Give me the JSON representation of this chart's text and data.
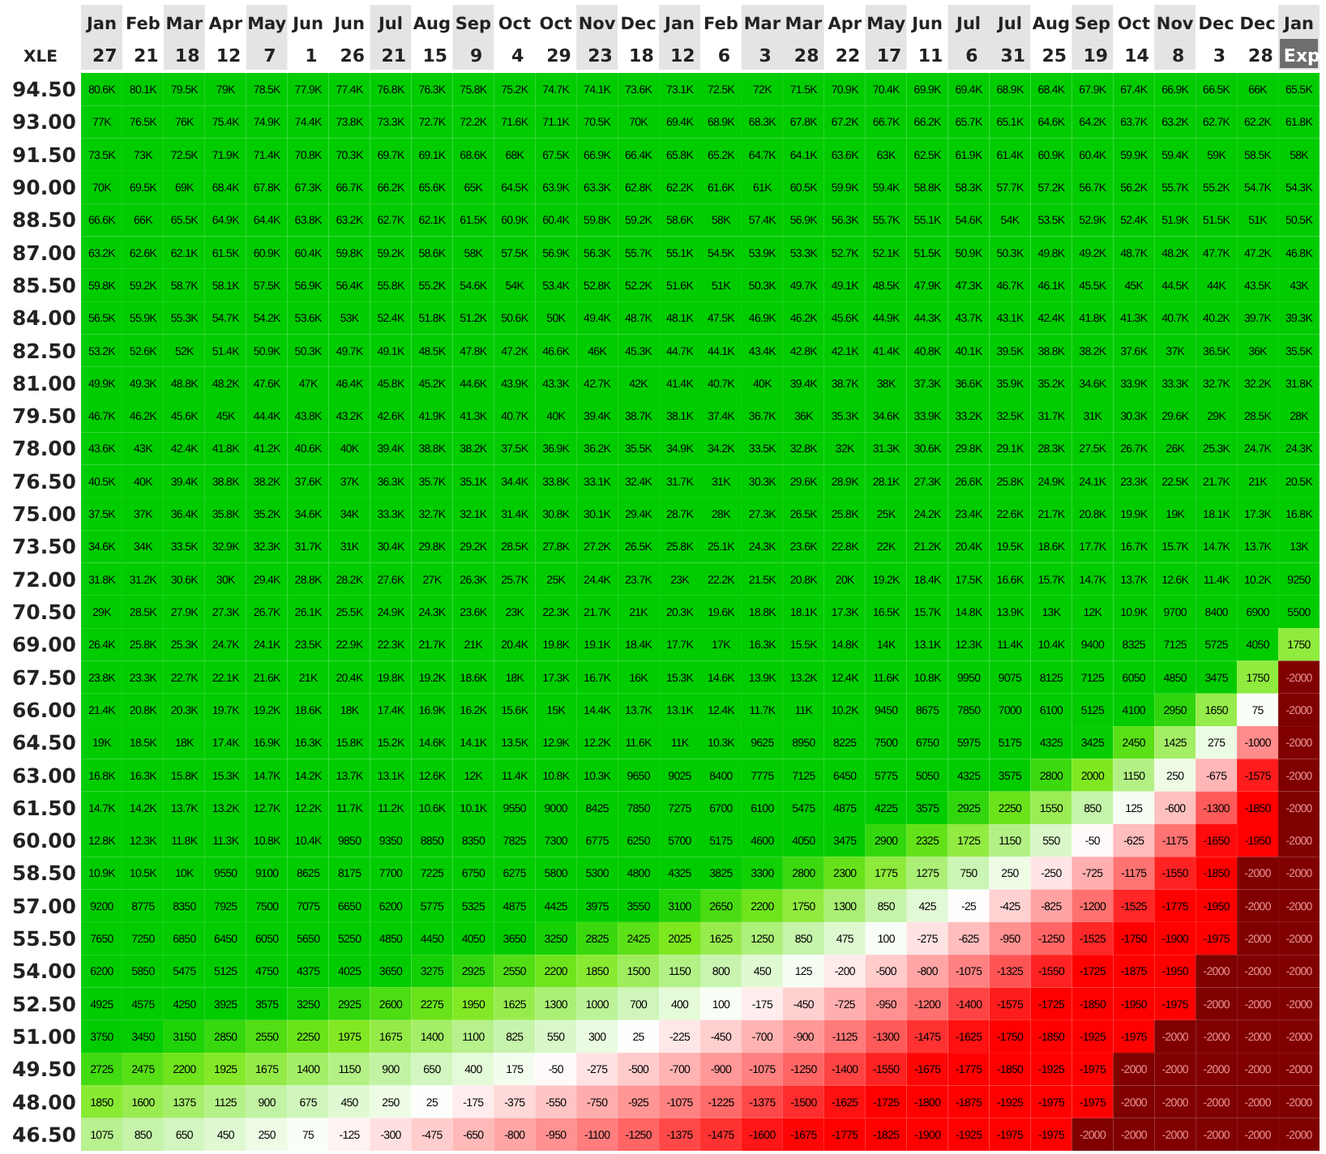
{
  "chart_data": {
    "type": "heatmap",
    "ylabel": "XLE",
    "categories": [
      "Jan 27",
      "Feb 21",
      "Mar 18",
      "Apr 12",
      "May 7",
      "Jun 1",
      "Jun 26",
      "Jul 21",
      "Aug 15",
      "Sep 9",
      "Oct 4",
      "Oct 29",
      "Nov 23",
      "Dec 18",
      "Jan 12",
      "Feb 6",
      "Mar 3",
      "Mar 28",
      "Apr 22",
      "May 17",
      "Jun 11",
      "Jul 6",
      "Jul 31",
      "Aug 25",
      "Sep 19",
      "Oct 14",
      "Nov 8",
      "Dec 3",
      "Dec 28",
      "Jan Exp"
    ],
    "y_categories": [
      "94.50",
      "93.00",
      "91.50",
      "90.00",
      "88.50",
      "87.00",
      "85.50",
      "84.00",
      "82.50",
      "81.00",
      "79.50",
      "78.00",
      "76.50",
      "75.00",
      "73.50",
      "72.00",
      "70.50",
      "69.00",
      "67.50",
      "66.00",
      "64.50",
      "63.00",
      "61.50",
      "60.00",
      "58.50",
      "57.00",
      "55.50",
      "54.00",
      "52.50",
      "51.00",
      "49.50",
      "48.00",
      "46.50"
    ],
    "cells": [
      [
        80600,
        80100,
        79500,
        79000,
        78500,
        77900,
        77400,
        76800,
        76300,
        75800,
        75200,
        74700,
        74100,
        73600,
        73100,
        72500,
        72000,
        71500,
        70900,
        70400,
        69900,
        69400,
        68900,
        68400,
        67900,
        67400,
        66900,
        66500,
        66000,
        65500
      ],
      [
        77000,
        76500,
        76000,
        75400,
        74900,
        74400,
        73800,
        73300,
        72700,
        72200,
        71600,
        71100,
        70500,
        70000,
        69400,
        68900,
        68300,
        67800,
        67200,
        66700,
        66200,
        65700,
        65100,
        64600,
        64200,
        63700,
        63200,
        62700,
        62200,
        61800
      ],
      [
        73500,
        73000,
        72500,
        71900,
        71400,
        70800,
        70300,
        69700,
        69100,
        68600,
        68000,
        67500,
        66900,
        66400,
        65800,
        65200,
        64700,
        64100,
        63600,
        63000,
        62500,
        61900,
        61400,
        60900,
        60400,
        59900,
        59400,
        59000,
        58500,
        58000
      ],
      [
        70000,
        69500,
        69000,
        68400,
        67800,
        67300,
        66700,
        66200,
        65600,
        65000,
        64500,
        63900,
        63300,
        62800,
        62200,
        61600,
        61000,
        60500,
        59900,
        59400,
        58800,
        58300,
        57700,
        57200,
        56700,
        56200,
        55700,
        55200,
        54700,
        54300
      ],
      [
        66600,
        66000,
        65500,
        64900,
        64400,
        63800,
        63200,
        62700,
        62100,
        61500,
        60900,
        60400,
        59800,
        59200,
        58600,
        58000,
        57400,
        56900,
        56300,
        55700,
        55100,
        54600,
        54000,
        53500,
        52900,
        52400,
        51900,
        51500,
        51000,
        50500
      ],
      [
        63200,
        62600,
        62100,
        61500,
        60900,
        60400,
        59800,
        59200,
        58600,
        58000,
        57500,
        56900,
        56300,
        55700,
        55100,
        54500,
        53900,
        53300,
        52700,
        52100,
        51500,
        50900,
        50300,
        49800,
        49200,
        48700,
        48200,
        47700,
        47200,
        46800
      ],
      [
        59800,
        59200,
        58700,
        58100,
        57500,
        56900,
        56400,
        55800,
        55200,
        54600,
        54000,
        53400,
        52800,
        52200,
        51600,
        51000,
        50300,
        49700,
        49100,
        48500,
        47900,
        47300,
        46700,
        46100,
        45500,
        45000,
        44500,
        44000,
        43500,
        43000
      ],
      [
        56500,
        55900,
        55300,
        54700,
        54200,
        53600,
        53000,
        52400,
        51800,
        51200,
        50600,
        50000,
        49400,
        48700,
        48100,
        47500,
        46900,
        46200,
        45600,
        44900,
        44300,
        43700,
        43100,
        42400,
        41800,
        41300,
        40700,
        40200,
        39700,
        39300
      ],
      [
        53200,
        52600,
        52000,
        51400,
        50900,
        50300,
        49700,
        49100,
        48500,
        47800,
        47200,
        46600,
        46000,
        45300,
        44700,
        44100,
        43400,
        42800,
        42100,
        41400,
        40800,
        40100,
        39500,
        38800,
        38200,
        37600,
        37000,
        36500,
        36000,
        35500
      ],
      [
        49900,
        49300,
        48800,
        48200,
        47600,
        47000,
        46400,
        45800,
        45200,
        44600,
        43900,
        43300,
        42700,
        42000,
        41400,
        40700,
        40000,
        39400,
        38700,
        38000,
        37300,
        36600,
        35900,
        35200,
        34600,
        33900,
        33300,
        32700,
        32200,
        31800
      ],
      [
        46700,
        46200,
        45600,
        45000,
        44400,
        43800,
        43200,
        42600,
        41900,
        41300,
        40700,
        40000,
        39400,
        38700,
        38100,
        37400,
        36700,
        36000,
        35300,
        34600,
        33900,
        33200,
        32500,
        31700,
        31000,
        30300,
        29600,
        29000,
        28500,
        28000
      ],
      [
        43600,
        43000,
        42400,
        41800,
        41200,
        40600,
        40000,
        39400,
        38800,
        38200,
        37500,
        36900,
        36200,
        35500,
        34900,
        34200,
        33500,
        32800,
        32000,
        31300,
        30600,
        29800,
        29100,
        28300,
        27500,
        26700,
        26000,
        25300,
        24700,
        24300
      ],
      [
        40500,
        40000,
        39400,
        38800,
        38200,
        37600,
        37000,
        36300,
        35700,
        35100,
        34400,
        33800,
        33100,
        32400,
        31700,
        31000,
        30300,
        29600,
        28900,
        28100,
        27300,
        26600,
        25800,
        24900,
        24100,
        23300,
        22500,
        21700,
        21000,
        20500
      ],
      [
        37500,
        37000,
        36400,
        35800,
        35200,
        34600,
        34000,
        33300,
        32700,
        32100,
        31400,
        30800,
        30100,
        29400,
        28700,
        28000,
        27300,
        26500,
        25800,
        25000,
        24200,
        23400,
        22600,
        21700,
        20800,
        19900,
        19000,
        18100,
        17300,
        16800
      ],
      [
        34600,
        34000,
        33500,
        32900,
        32300,
        31700,
        31000,
        30400,
        29800,
        29200,
        28500,
        27800,
        27200,
        26500,
        25800,
        25100,
        24300,
        23600,
        22800,
        22000,
        21200,
        20400,
        19500,
        18600,
        17700,
        16700,
        15700,
        14700,
        13700,
        13000
      ],
      [
        31800,
        31200,
        30600,
        30000,
        29400,
        28800,
        28200,
        27600,
        27000,
        26300,
        25700,
        25000,
        24400,
        23700,
        23000,
        22200,
        21500,
        20800,
        20000,
        19200,
        18400,
        17500,
        16600,
        15700,
        14700,
        13700,
        12600,
        11400,
        10200,
        9250
      ],
      [
        29000,
        28500,
        27900,
        27300,
        26700,
        26100,
        25500,
        24900,
        24300,
        23600,
        23000,
        22300,
        21700,
        21000,
        20300,
        19600,
        18800,
        18100,
        17300,
        16500,
        15700,
        14800,
        13900,
        13000,
        12000,
        10900,
        9700,
        8400,
        6900,
        5500
      ],
      [
        26400,
        25800,
        25300,
        24700,
        24100,
        23500,
        22900,
        22300,
        21700,
        21000,
        20400,
        19800,
        19100,
        18400,
        17700,
        17000,
        16300,
        15500,
        14800,
        14000,
        13100,
        12300,
        11400,
        10400,
        9400,
        8325,
        7125,
        5725,
        4050,
        1750
      ],
      [
        23800,
        23300,
        22700,
        22100,
        21600,
        21000,
        20400,
        19800,
        19200,
        18600,
        18000,
        17300,
        16700,
        16000,
        15300,
        14600,
        13900,
        13200,
        12400,
        11600,
        10800,
        9950,
        9075,
        8125,
        7125,
        6050,
        4850,
        3475,
        1750,
        -2000
      ],
      [
        21400,
        20800,
        20300,
        19700,
        19200,
        18600,
        18000,
        17400,
        16900,
        16200,
        15600,
        15000,
        14400,
        13700,
        13100,
        12400,
        11700,
        11000,
        10200,
        9450,
        8675,
        7850,
        7000,
        6100,
        5125,
        4100,
        2950,
        1650,
        75,
        -2000
      ],
      [
        19000,
        18500,
        18000,
        17400,
        16900,
        16300,
        15800,
        15200,
        14600,
        14100,
        13500,
        12900,
        12200,
        11600,
        11000,
        10300,
        9625,
        8950,
        8225,
        7500,
        6750,
        5975,
        5175,
        4325,
        3425,
        2450,
        1425,
        275,
        -1000,
        -2000
      ],
      [
        16800,
        16300,
        15800,
        15300,
        14700,
        14200,
        13700,
        13100,
        12600,
        12000,
        11400,
        10800,
        10300,
        9650,
        9025,
        8400,
        7775,
        7125,
        6450,
        5775,
        5050,
        4325,
        3575,
        2800,
        2000,
        1150,
        250,
        -675,
        -1575,
        -2000
      ],
      [
        14700,
        14200,
        13700,
        13200,
        12700,
        12200,
        11700,
        11200,
        10600,
        10100,
        9550,
        9000,
        8425,
        7850,
        7275,
        6700,
        6100,
        5475,
        4875,
        4225,
        3575,
        2925,
        2250,
        1550,
        850,
        125,
        -600,
        -1300,
        -1850,
        -2000
      ],
      [
        12800,
        12300,
        11800,
        11300,
        10800,
        10400,
        9850,
        9350,
        8850,
        8350,
        7825,
        7300,
        6775,
        6250,
        5700,
        5175,
        4600,
        4050,
        3475,
        2900,
        2325,
        1725,
        1150,
        550,
        -50,
        -625,
        -1175,
        -1650,
        -1950,
        -2000
      ],
      [
        10900,
        10500,
        10000,
        9550,
        9100,
        8625,
        8175,
        7700,
        7225,
        6750,
        6275,
        5800,
        5300,
        4800,
        4325,
        3825,
        3300,
        2800,
        2300,
        1775,
        1275,
        750,
        250,
        -250,
        -725,
        -1175,
        -1550,
        -1850,
        -2000,
        -2000
      ],
      [
        9200,
        8775,
        8350,
        7925,
        7500,
        7075,
        6650,
        6200,
        5775,
        5325,
        4875,
        4425,
        3975,
        3550,
        3100,
        2650,
        2200,
        1750,
        1300,
        850,
        425,
        -25,
        -425,
        -825,
        -1200,
        -1525,
        -1775,
        -1950,
        -2000,
        -2000
      ],
      [
        7650,
        7250,
        6850,
        6450,
        6050,
        5650,
        5250,
        4850,
        4450,
        4050,
        3650,
        3250,
        2825,
        2425,
        2025,
        1625,
        1250,
        850,
        475,
        100,
        -275,
        -625,
        -950,
        -1250,
        -1525,
        -1750,
        -1900,
        -1975,
        -2000,
        -2000
      ],
      [
        6200,
        5850,
        5475,
        5125,
        4750,
        4375,
        4025,
        3650,
        3275,
        2925,
        2550,
        2200,
        1850,
        1500,
        1150,
        800,
        450,
        125,
        -200,
        -500,
        -800,
        -1075,
        -1325,
        -1550,
        -1725,
        -1875,
        -1950,
        -2000,
        -2000,
        -2000
      ],
      [
        4925,
        4575,
        4250,
        3925,
        3575,
        3250,
        2925,
        2600,
        2275,
        1950,
        1625,
        1300,
        1000,
        700,
        400,
        100,
        -175,
        -450,
        -725,
        -950,
        -1200,
        -1400,
        -1575,
        -1725,
        -1850,
        -1950,
        -1975,
        -2000,
        -2000,
        -2000
      ],
      [
        3750,
        3450,
        3150,
        2850,
        2550,
        2250,
        1975,
        1675,
        1400,
        1100,
        825,
        550,
        300,
        25,
        -225,
        -450,
        -700,
        -900,
        -1125,
        -1300,
        -1475,
        -1625,
        -1750,
        -1850,
        -1925,
        -1975,
        -2000,
        -2000,
        -2000,
        -2000
      ],
      [
        2725,
        2475,
        2200,
        1925,
        1675,
        1400,
        1150,
        900,
        650,
        400,
        175,
        -50,
        -275,
        -500,
        -700,
        -900,
        -1075,
        -1250,
        -1400,
        -1550,
        -1675,
        -1775,
        -1850,
        -1925,
        -1975,
        -2000,
        -2000,
        -2000,
        -2000,
        -2000
      ],
      [
        1850,
        1600,
        1375,
        1125,
        900,
        675,
        450,
        250,
        25,
        -175,
        -375,
        -550,
        -750,
        -925,
        -1075,
        -1225,
        -1375,
        -1500,
        -1625,
        -1725,
        -1800,
        -1875,
        -1925,
        -1975,
        -1975,
        -2000,
        -2000,
        -2000,
        -2000,
        -2000
      ],
      [
        1075,
        850,
        650,
        450,
        250,
        75,
        -125,
        -300,
        -475,
        -650,
        -800,
        -950,
        -1100,
        -1250,
        -1375,
        -1475,
        -1600,
        -1675,
        -1775,
        -1825,
        -1900,
        -1925,
        -1975,
        -1975,
        -2000,
        -2000,
        -2000,
        -2000,
        -2000,
        -2000
      ]
    ],
    "cell_labels": [
      [
        "80.6K",
        "80.1K",
        "79.5K",
        "79K",
        "78.5K",
        "77.9K",
        "77.4K",
        "76.8K",
        "76.3K",
        "75.8K",
        "75.2K",
        "74.7K",
        "74.1K",
        "73.6K",
        "73.1K",
        "72.5K",
        "72K",
        "71.5K",
        "70.9K",
        "70.4K",
        "69.9K",
        "69.4K",
        "68.9K",
        "68.4K",
        "67.9K",
        "67.4K",
        "66.9K",
        "66.5K",
        "66K",
        "65.5K"
      ],
      [
        "77K",
        "76.5K",
        "76K",
        "75.4K",
        "74.9K",
        "74.4K",
        "73.8K",
        "73.3K",
        "72.7K",
        "72.2K",
        "71.6K",
        "71.1K",
        "70.5K",
        "70K",
        "69.4K",
        "68.9K",
        "68.3K",
        "67.8K",
        "67.2K",
        "66.7K",
        "66.2K",
        "65.7K",
        "65.1K",
        "64.6K",
        "64.2K",
        "63.7K",
        "63.2K",
        "62.7K",
        "62.2K",
        "61.8K"
      ],
      [
        "73.5K",
        "73K",
        "72.5K",
        "71.9K",
        "71.4K",
        "70.8K",
        "70.3K",
        "69.7K",
        "69.1K",
        "68.6K",
        "68K",
        "67.5K",
        "66.9K",
        "66.4K",
        "65.8K",
        "65.2K",
        "64.7K",
        "64.1K",
        "63.6K",
        "63K",
        "62.5K",
        "61.9K",
        "61.4K",
        "60.9K",
        "60.4K",
        "59.9K",
        "59.4K",
        "59K",
        "58.5K",
        "58K"
      ],
      [
        "70K",
        "69.5K",
        "69K",
        "68.4K",
        "67.8K",
        "67.3K",
        "66.7K",
        "66.2K",
        "65.6K",
        "65K",
        "64.5K",
        "63.9K",
        "63.3K",
        "62.8K",
        "62.2K",
        "61.6K",
        "61K",
        "60.5K",
        "59.9K",
        "59.4K",
        "58.8K",
        "58.3K",
        "57.7K",
        "57.2K",
        "56.7K",
        "56.2K",
        "55.7K",
        "55.2K",
        "54.7K",
        "54.3K"
      ],
      [
        "66.6K",
        "66K",
        "65.5K",
        "64.9K",
        "64.4K",
        "63.8K",
        "63.2K",
        "62.7K",
        "62.1K",
        "61.5K",
        "60.9K",
        "60.4K",
        "59.8K",
        "59.2K",
        "58.6K",
        "58K",
        "57.4K",
        "56.9K",
        "56.3K",
        "55.7K",
        "55.1K",
        "54.6K",
        "54K",
        "53.5K",
        "52.9K",
        "52.4K",
        "51.9K",
        "51.5K",
        "51K",
        "50.5K"
      ],
      [
        "63.2K",
        "62.6K",
        "62.1K",
        "61.5K",
        "60.9K",
        "60.4K",
        "59.8K",
        "59.2K",
        "58.6K",
        "58K",
        "57.5K",
        "56.9K",
        "56.3K",
        "55.7K",
        "55.1K",
        "54.5K",
        "53.9K",
        "53.3K",
        "52.7K",
        "52.1K",
        "51.5K",
        "50.9K",
        "50.3K",
        "49.8K",
        "49.2K",
        "48.7K",
        "48.2K",
        "47.7K",
        "47.2K",
        "46.8K"
      ],
      [
        "59.8K",
        "59.2K",
        "58.7K",
        "58.1K",
        "57.5K",
        "56.9K",
        "56.4K",
        "55.8K",
        "55.2K",
        "54.6K",
        "54K",
        "53.4K",
        "52.8K",
        "52.2K",
        "51.6K",
        "51K",
        "50.3K",
        "49.7K",
        "49.1K",
        "48.5K",
        "47.9K",
        "47.3K",
        "46.7K",
        "46.1K",
        "45.5K",
        "45K",
        "44.5K",
        "44K",
        "43.5K",
        "43K"
      ],
      [
        "56.5K",
        "55.9K",
        "55.3K",
        "54.7K",
        "54.2K",
        "53.6K",
        "53K",
        "52.4K",
        "51.8K",
        "51.2K",
        "50.6K",
        "50K",
        "49.4K",
        "48.7K",
        "48.1K",
        "47.5K",
        "46.9K",
        "46.2K",
        "45.6K",
        "44.9K",
        "44.3K",
        "43.7K",
        "43.1K",
        "42.4K",
        "41.8K",
        "41.3K",
        "40.7K",
        "40.2K",
        "39.7K",
        "39.3K"
      ],
      [
        "53.2K",
        "52.6K",
        "52K",
        "51.4K",
        "50.9K",
        "50.3K",
        "49.7K",
        "49.1K",
        "48.5K",
        "47.8K",
        "47.2K",
        "46.6K",
        "46K",
        "45.3K",
        "44.7K",
        "44.1K",
        "43.4K",
        "42.8K",
        "42.1K",
        "41.4K",
        "40.8K",
        "40.1K",
        "39.5K",
        "38.8K",
        "38.2K",
        "37.6K",
        "37K",
        "36.5K",
        "36K",
        "35.5K"
      ],
      [
        "49.9K",
        "49.3K",
        "48.8K",
        "48.2K",
        "47.6K",
        "47K",
        "46.4K",
        "45.8K",
        "45.2K",
        "44.6K",
        "43.9K",
        "43.3K",
        "42.7K",
        "42K",
        "41.4K",
        "40.7K",
        "40K",
        "39.4K",
        "38.7K",
        "38K",
        "37.3K",
        "36.6K",
        "35.9K",
        "35.2K",
        "34.6K",
        "33.9K",
        "33.3K",
        "32.7K",
        "32.2K",
        "31.8K"
      ],
      [
        "46.7K",
        "46.2K",
        "45.6K",
        "45K",
        "44.4K",
        "43.8K",
        "43.2K",
        "42.6K",
        "41.9K",
        "41.3K",
        "40.7K",
        "40K",
        "39.4K",
        "38.7K",
        "38.1K",
        "37.4K",
        "36.7K",
        "36K",
        "35.3K",
        "34.6K",
        "33.9K",
        "33.2K",
        "32.5K",
        "31.7K",
        "31K",
        "30.3K",
        "29.6K",
        "29K",
        "28.5K",
        "28K"
      ],
      [
        "43.6K",
        "43K",
        "42.4K",
        "41.8K",
        "41.2K",
        "40.6K",
        "40K",
        "39.4K",
        "38.8K",
        "38.2K",
        "37.5K",
        "36.9K",
        "36.2K",
        "35.5K",
        "34.9K",
        "34.2K",
        "33.5K",
        "32.8K",
        "32K",
        "31.3K",
        "30.6K",
        "29.8K",
        "29.1K",
        "28.3K",
        "27.5K",
        "26.7K",
        "26K",
        "25.3K",
        "24.7K",
        "24.3K"
      ],
      [
        "40.5K",
        "40K",
        "39.4K",
        "38.8K",
        "38.2K",
        "37.6K",
        "37K",
        "36.3K",
        "35.7K",
        "35.1K",
        "34.4K",
        "33.8K",
        "33.1K",
        "32.4K",
        "31.7K",
        "31K",
        "30.3K",
        "29.6K",
        "28.9K",
        "28.1K",
        "27.3K",
        "26.6K",
        "25.8K",
        "24.9K",
        "24.1K",
        "23.3K",
        "22.5K",
        "21.7K",
        "21K",
        "20.5K"
      ],
      [
        "37.5K",
        "37K",
        "36.4K",
        "35.8K",
        "35.2K",
        "34.6K",
        "34K",
        "33.3K",
        "32.7K",
        "32.1K",
        "31.4K",
        "30.8K",
        "30.1K",
        "29.4K",
        "28.7K",
        "28K",
        "27.3K",
        "26.5K",
        "25.8K",
        "25K",
        "24.2K",
        "23.4K",
        "22.6K",
        "21.7K",
        "20.8K",
        "19.9K",
        "19K",
        "18.1K",
        "17.3K",
        "16.8K"
      ],
      [
        "34.6K",
        "34K",
        "33.5K",
        "32.9K",
        "32.3K",
        "31.7K",
        "31K",
        "30.4K",
        "29.8K",
        "29.2K",
        "28.5K",
        "27.8K",
        "27.2K",
        "26.5K",
        "25.8K",
        "25.1K",
        "24.3K",
        "23.6K",
        "22.8K",
        "22K",
        "21.2K",
        "20.4K",
        "19.5K",
        "18.6K",
        "17.7K",
        "16.7K",
        "15.7K",
        "14.7K",
        "13.7K",
        "13K"
      ],
      [
        "31.8K",
        "31.2K",
        "30.6K",
        "30K",
        "29.4K",
        "28.8K",
        "28.2K",
        "27.6K",
        "27K",
        "26.3K",
        "25.7K",
        "25K",
        "24.4K",
        "23.7K",
        "23K",
        "22.2K",
        "21.5K",
        "20.8K",
        "20K",
        "19.2K",
        "18.4K",
        "17.5K",
        "16.6K",
        "15.7K",
        "14.7K",
        "13.7K",
        "12.6K",
        "11.4K",
        "10.2K",
        "9250"
      ],
      [
        "29K",
        "28.5K",
        "27.9K",
        "27.3K",
        "26.7K",
        "26.1K",
        "25.5K",
        "24.9K",
        "24.3K",
        "23.6K",
        "23K",
        "22.3K",
        "21.7K",
        "21K",
        "20.3K",
        "19.6K",
        "18.8K",
        "18.1K",
        "17.3K",
        "16.5K",
        "15.7K",
        "14.8K",
        "13.9K",
        "13K",
        "12K",
        "10.9K",
        "9700",
        "8400",
        "6900",
        "5500"
      ],
      [
        "26.4K",
        "25.8K",
        "25.3K",
        "24.7K",
        "24.1K",
        "23.5K",
        "22.9K",
        "22.3K",
        "21.7K",
        "21K",
        "20.4K",
        "19.8K",
        "19.1K",
        "18.4K",
        "17.7K",
        "17K",
        "16.3K",
        "15.5K",
        "14.8K",
        "14K",
        "13.1K",
        "12.3K",
        "11.4K",
        "10.4K",
        "9400",
        "8325",
        "7125",
        "5725",
        "4050",
        "1750"
      ],
      [
        "23.8K",
        "23.3K",
        "22.7K",
        "22.1K",
        "21.6K",
        "21K",
        "20.4K",
        "19.8K",
        "19.2K",
        "18.6K",
        "18K",
        "17.3K",
        "16.7K",
        "16K",
        "15.3K",
        "14.6K",
        "13.9K",
        "13.2K",
        "12.4K",
        "11.6K",
        "10.8K",
        "9950",
        "9075",
        "8125",
        "7125",
        "6050",
        "4850",
        "3475",
        "1750",
        "-2000"
      ],
      [
        "21.4K",
        "20.8K",
        "20.3K",
        "19.7K",
        "19.2K",
        "18.6K",
        "18K",
        "17.4K",
        "16.9K",
        "16.2K",
        "15.6K",
        "15K",
        "14.4K",
        "13.7K",
        "13.1K",
        "12.4K",
        "11.7K",
        "11K",
        "10.2K",
        "9450",
        "8675",
        "7850",
        "7000",
        "6100",
        "5125",
        "4100",
        "2950",
        "1650",
        "75",
        "-2000"
      ],
      [
        "19K",
        "18.5K",
        "18K",
        "17.4K",
        "16.9K",
        "16.3K",
        "15.8K",
        "15.2K",
        "14.6K",
        "14.1K",
        "13.5K",
        "12.9K",
        "12.2K",
        "11.6K",
        "11K",
        "10.3K",
        "9625",
        "8950",
        "8225",
        "7500",
        "6750",
        "5975",
        "5175",
        "4325",
        "3425",
        "2450",
        "1425",
        "275",
        "-1000",
        "-2000"
      ],
      [
        "16.8K",
        "16.3K",
        "15.8K",
        "15.3K",
        "14.7K",
        "14.2K",
        "13.7K",
        "13.1K",
        "12.6K",
        "12K",
        "11.4K",
        "10.8K",
        "10.3K",
        "9650",
        "9025",
        "8400",
        "7775",
        "7125",
        "6450",
        "5775",
        "5050",
        "4325",
        "3575",
        "2800",
        "2000",
        "1150",
        "250",
        "-675",
        "-1575",
        "-2000"
      ],
      [
        "14.7K",
        "14.2K",
        "13.7K",
        "13.2K",
        "12.7K",
        "12.2K",
        "11.7K",
        "11.2K",
        "10.6K",
        "10.1K",
        "9550",
        "9000",
        "8425",
        "7850",
        "7275",
        "6700",
        "6100",
        "5475",
        "4875",
        "4225",
        "3575",
        "2925",
        "2250",
        "1550",
        "850",
        "125",
        "-600",
        "-1300",
        "-1850",
        "-2000"
      ],
      [
        "12.8K",
        "12.3K",
        "11.8K",
        "11.3K",
        "10.8K",
        "10.4K",
        "9850",
        "9350",
        "8850",
        "8350",
        "7825",
        "7300",
        "6775",
        "6250",
        "5700",
        "5175",
        "4600",
        "4050",
        "3475",
        "2900",
        "2325",
        "1725",
        "1150",
        "550",
        "-50",
        "-625",
        "-1175",
        "-1650",
        "-1950",
        "-2000"
      ],
      [
        "10.9K",
        "10.5K",
        "10K",
        "9550",
        "9100",
        "8625",
        "8175",
        "7700",
        "7225",
        "6750",
        "6275",
        "5800",
        "5300",
        "4800",
        "4325",
        "3825",
        "3300",
        "2800",
        "2300",
        "1775",
        "1275",
        "750",
        "250",
        "-250",
        "-725",
        "-1175",
        "-1550",
        "-1850",
        "-2000",
        "-2000"
      ],
      [
        "9200",
        "8775",
        "8350",
        "7925",
        "7500",
        "7075",
        "6650",
        "6200",
        "5775",
        "5325",
        "4875",
        "4425",
        "3975",
        "3550",
        "3100",
        "2650",
        "2200",
        "1750",
        "1300",
        "850",
        "425",
        "-25",
        "-425",
        "-825",
        "-1200",
        "-1525",
        "-1775",
        "-1950",
        "-2000",
        "-2000"
      ],
      [
        "7650",
        "7250",
        "6850",
        "6450",
        "6050",
        "5650",
        "5250",
        "4850",
        "4450",
        "4050",
        "3650",
        "3250",
        "2825",
        "2425",
        "2025",
        "1625",
        "1250",
        "850",
        "475",
        "100",
        "-275",
        "-625",
        "-950",
        "-1250",
        "-1525",
        "-1750",
        "-1900",
        "-1975",
        "-2000",
        "-2000"
      ],
      [
        "6200",
        "5850",
        "5475",
        "5125",
        "4750",
        "4375",
        "4025",
        "3650",
        "3275",
        "2925",
        "2550",
        "2200",
        "1850",
        "1500",
        "1150",
        "800",
        "450",
        "125",
        "-200",
        "-500",
        "-800",
        "-1075",
        "-1325",
        "-1550",
        "-1725",
        "-1875",
        "-1950",
        "-2000",
        "-2000",
        "-2000"
      ],
      [
        "4925",
        "4575",
        "4250",
        "3925",
        "3575",
        "3250",
        "2925",
        "2600",
        "2275",
        "1950",
        "1625",
        "1300",
        "1000",
        "700",
        "400",
        "100",
        "-175",
        "-450",
        "-725",
        "-950",
        "-1200",
        "-1400",
        "-1575",
        "-1725",
        "-1850",
        "-1950",
        "-1975",
        "-2000",
        "-2000",
        "-2000"
      ],
      [
        "3750",
        "3450",
        "3150",
        "2850",
        "2550",
        "2250",
        "1975",
        "1675",
        "1400",
        "1100",
        "825",
        "550",
        "300",
        "25",
        "-225",
        "-450",
        "-700",
        "-900",
        "-1125",
        "-1300",
        "-1475",
        "-1625",
        "-1750",
        "-1850",
        "-1925",
        "-1975",
        "-2000",
        "-2000",
        "-2000",
        "-2000"
      ],
      [
        "2725",
        "2475",
        "2200",
        "1925",
        "1675",
        "1400",
        "1150",
        "900",
        "650",
        "400",
        "175",
        "-50",
        "-275",
        "-500",
        "-700",
        "-900",
        "-1075",
        "-1250",
        "-1400",
        "-1550",
        "-1675",
        "-1775",
        "-1850",
        "-1925",
        "-1975",
        "-2000",
        "-2000",
        "-2000",
        "-2000",
        "-2000"
      ],
      [
        "1850",
        "1600",
        "1375",
        "1125",
        "900",
        "675",
        "450",
        "250",
        "25",
        "-175",
        "-375",
        "-550",
        "-750",
        "-925",
        "-1075",
        "-1225",
        "-1375",
        "-1500",
        "-1625",
        "-1725",
        "-1800",
        "-1875",
        "-1925",
        "-1975",
        "-1975",
        "-2000",
        "-2000",
        "-2000",
        "-2000",
        "-2000"
      ],
      [
        "1075",
        "850",
        "650",
        "450",
        "250",
        "75",
        "-125",
        "-300",
        "-475",
        "-650",
        "-800",
        "-950",
        "-1100",
        "-1250",
        "-1375",
        "-1475",
        "-1600",
        "-1675",
        "-1775",
        "-1825",
        "-1900",
        "-1925",
        "-1975",
        "-1975",
        "-2000",
        "-2000",
        "-2000",
        "-2000",
        "-2000",
        "-2000"
      ]
    ]
  }
}
